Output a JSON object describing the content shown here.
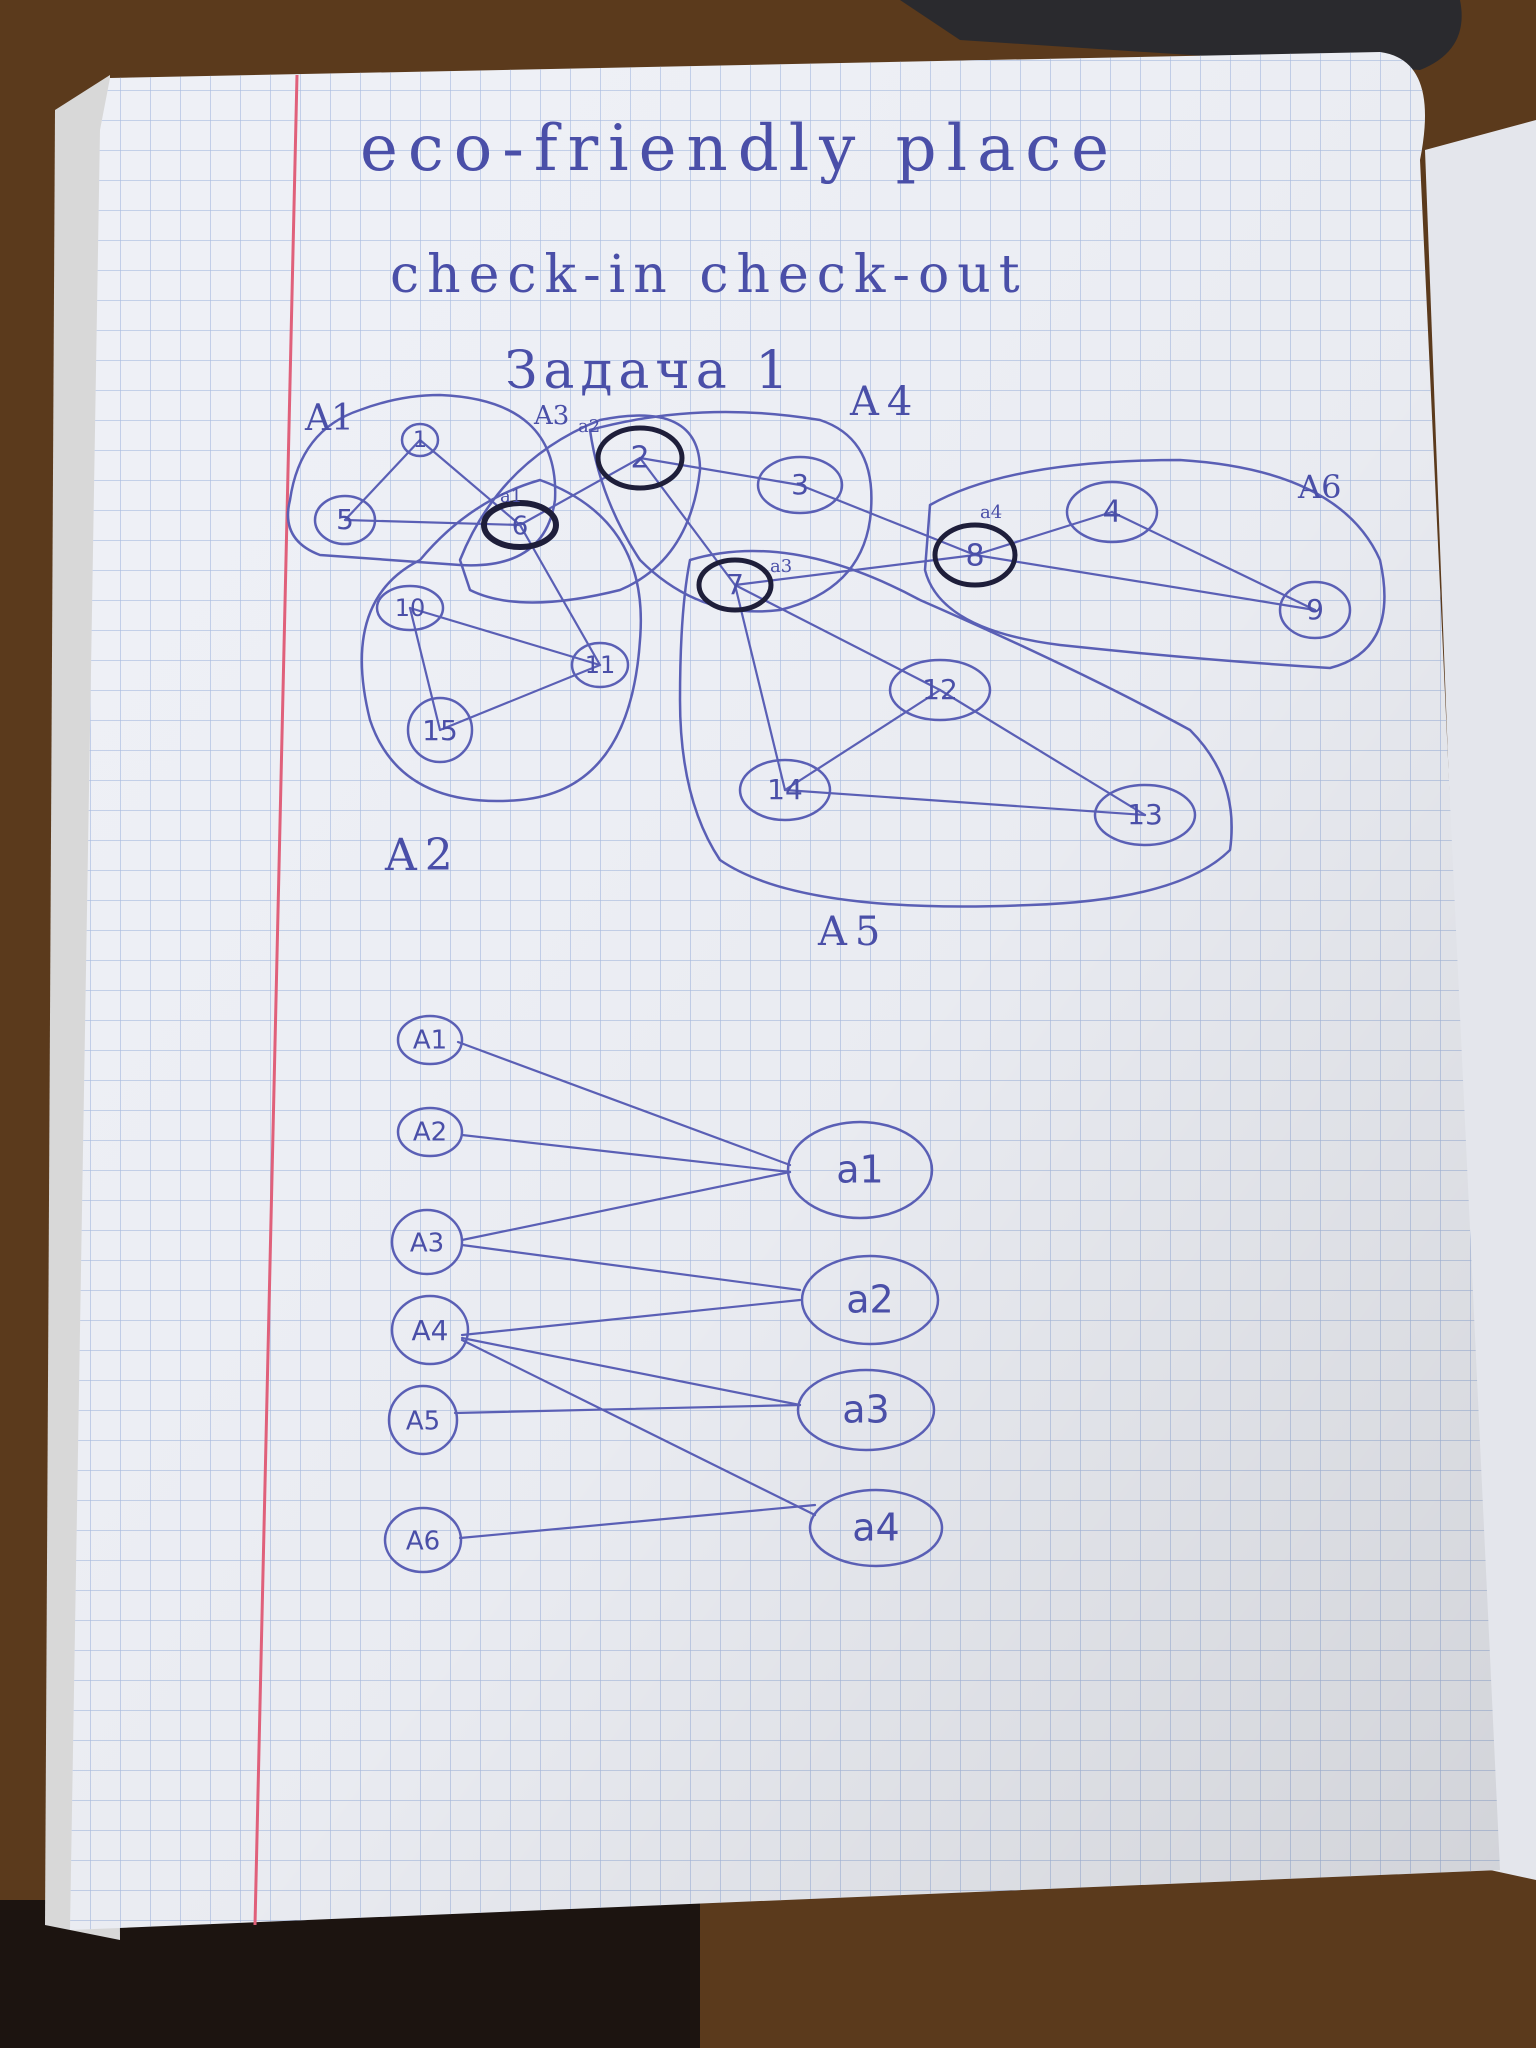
{
  "page": {
    "title": "eco-friendly place",
    "subtitle": "check-in check-out",
    "task": "Задача 1"
  },
  "groups": {
    "A1": "A1",
    "A2": "A2",
    "A3": "A3",
    "A4": "A4",
    "A5": "A5",
    "A6": "A6"
  },
  "nodes": [
    "1",
    "2",
    "3",
    "4",
    "5",
    "6",
    "7",
    "8",
    "9",
    "10",
    "11",
    "12",
    "13",
    "14",
    "15"
  ],
  "node_marks": {
    "a1": "a1",
    "a2": "a2",
    "a3": "a3",
    "a4": "a4"
  },
  "bipartite": {
    "left": [
      "A1",
      "A2",
      "A3",
      "A4",
      "A5",
      "A6"
    ],
    "right": [
      "a1",
      "a2",
      "a3",
      "a4"
    ]
  },
  "colors": {
    "ink": "#4a4fa8",
    "paper": "#eef0f6",
    "grid": "#a9bce0",
    "margin_line": "#e0607a",
    "table_wood": "#5b3a1c"
  }
}
